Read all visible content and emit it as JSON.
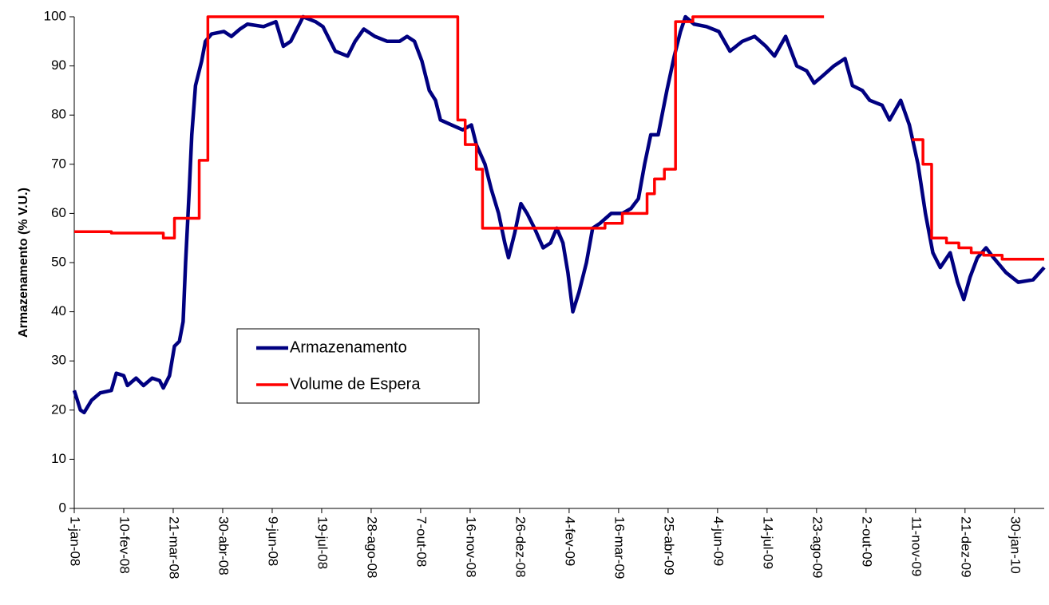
{
  "chart_data": {
    "type": "line",
    "ylabel": "Armazenamento (% V.U.)",
    "ylim": [
      0,
      100
    ],
    "yticks": [
      0,
      10,
      20,
      30,
      40,
      50,
      60,
      70,
      80,
      90,
      100
    ],
    "xlim": [
      "2008-01-01",
      "2010-02-23"
    ],
    "xticks": [
      {
        "value": "2008-01-01",
        "label": "1-jan-08"
      },
      {
        "value": "2008-02-10",
        "label": "10-fev-08"
      },
      {
        "value": "2008-03-21",
        "label": "21-mar-08"
      },
      {
        "value": "2008-04-30",
        "label": "30-abr-08"
      },
      {
        "value": "2008-06-09",
        "label": "9-jun-08"
      },
      {
        "value": "2008-07-19",
        "label": "19-jul-08"
      },
      {
        "value": "2008-08-28",
        "label": "28-ago-08"
      },
      {
        "value": "2008-10-07",
        "label": "7-out-08"
      },
      {
        "value": "2008-11-16",
        "label": "16-nov-08"
      },
      {
        "value": "2008-12-26",
        "label": "26-dez-08"
      },
      {
        "value": "2009-02-04",
        "label": "4-fev-09"
      },
      {
        "value": "2009-03-16",
        "label": "16-mar-09"
      },
      {
        "value": "2009-04-25",
        "label": "25-abr-09"
      },
      {
        "value": "2009-06-04",
        "label": "4-jun-09"
      },
      {
        "value": "2009-07-14",
        "label": "14-jul-09"
      },
      {
        "value": "2009-08-23",
        "label": "23-ago-09"
      },
      {
        "value": "2009-10-02",
        "label": "2-out-09"
      },
      {
        "value": "2009-11-11",
        "label": "11-nov-09"
      },
      {
        "value": "2009-12-21",
        "label": "21-dez-09"
      },
      {
        "value": "2010-01-30",
        "label": "30-jan-10"
      }
    ],
    "grid": false,
    "legend": "center-left",
    "series": [
      {
        "name": "Armazenamento",
        "color": "#000080",
        "x": [
          "2008-01-01",
          "2008-01-06",
          "2008-01-09",
          "2008-01-15",
          "2008-01-22",
          "2008-01-31",
          "2008-02-04",
          "2008-02-10",
          "2008-02-13",
          "2008-02-20",
          "2008-02-26",
          "2008-03-04",
          "2008-03-10",
          "2008-03-13",
          "2008-03-18",
          "2008-03-22",
          "2008-03-26",
          "2008-03-29",
          "2008-03-31",
          "2008-04-03",
          "2008-04-05",
          "2008-04-08",
          "2008-04-13",
          "2008-04-16",
          "2008-04-21",
          "2008-05-01",
          "2008-05-07",
          "2008-05-14",
          "2008-05-20",
          "2008-06-02",
          "2008-06-12",
          "2008-06-18",
          "2008-06-24",
          "2008-07-04",
          "2008-07-14",
          "2008-07-20",
          "2008-07-30",
          "2008-08-09",
          "2008-08-15",
          "2008-08-22",
          "2008-08-31",
          "2008-09-10",
          "2008-09-20",
          "2008-09-26",
          "2008-10-02",
          "2008-10-08",
          "2008-10-14",
          "2008-10-19",
          "2008-10-23",
          "2008-11-01",
          "2008-11-10",
          "2008-11-17",
          "2008-11-21",
          "2008-11-28",
          "2008-12-03",
          "2008-12-09",
          "2008-12-14",
          "2008-12-17",
          "2008-12-22",
          "2008-12-27",
          "2009-01-01",
          "2009-01-07",
          "2009-01-14",
          "2009-01-20",
          "2009-01-25",
          "2009-01-30",
          "2009-02-03",
          "2009-02-07",
          "2009-02-12",
          "2009-02-18",
          "2009-02-23",
          "2009-03-01",
          "2009-03-10",
          "2009-03-19",
          "2009-03-26",
          "2009-04-01",
          "2009-04-06",
          "2009-04-11",
          "2009-04-17",
          "2009-04-24",
          "2009-04-30",
          "2009-05-05",
          "2009-05-09",
          "2009-05-16",
          "2009-05-26",
          "2009-06-05",
          "2009-06-14",
          "2009-06-24",
          "2009-07-04",
          "2009-07-13",
          "2009-07-20",
          "2009-07-29",
          "2009-08-07",
          "2009-08-15",
          "2009-08-21",
          "2009-08-28",
          "2009-09-06",
          "2009-09-15",
          "2009-09-21",
          "2009-09-29",
          "2009-10-05",
          "2009-10-15",
          "2009-10-21",
          "2009-10-30",
          "2009-11-06",
          "2009-11-13",
          "2009-11-19",
          "2009-11-25",
          "2009-12-01",
          "2009-12-09",
          "2009-12-15",
          "2009-12-20",
          "2009-12-25",
          "2009-12-31",
          "2010-01-07",
          "2010-01-13",
          "2010-01-23",
          "2010-02-02",
          "2010-02-14",
          "2010-02-23"
        ],
        "values": [
          24,
          20,
          19.5,
          22,
          23.5,
          24,
          27.5,
          27,
          25,
          26.5,
          25,
          26.5,
          26,
          24.5,
          27,
          33,
          34,
          38,
          50,
          65,
          76,
          86,
          91,
          95,
          96.5,
          97,
          96,
          97.5,
          98.5,
          98,
          99,
          94,
          95,
          100,
          99,
          98,
          93,
          92,
          95,
          97.5,
          96,
          95,
          95,
          96,
          95,
          91,
          85,
          83,
          79,
          78,
          77,
          78,
          74,
          70,
          65,
          60,
          54,
          51,
          56,
          62,
          60,
          57,
          53,
          54,
          57,
          54,
          48,
          40,
          44,
          50,
          57,
          58,
          60,
          60,
          61,
          63,
          70,
          76,
          76,
          85,
          92,
          97,
          100,
          98.5,
          98,
          97,
          93,
          95,
          96,
          94,
          92,
          96,
          90,
          89,
          86.5,
          88,
          90,
          91.5,
          86,
          85,
          83,
          82,
          79,
          83,
          78,
          70,
          60,
          52,
          49,
          52,
          46,
          42.5,
          47,
          51,
          53,
          51,
          48,
          46,
          46.5,
          49
        ]
      },
      {
        "name": "Volume de Espera",
        "color": "#ff0000",
        "x": [
          "2008-01-01",
          "2008-01-31",
          "2008-01-31",
          "2008-03-13",
          "2008-03-13",
          "2008-03-22",
          "2008-03-22",
          "2008-04-11",
          "2008-04-11",
          "2008-04-18",
          "2008-04-18",
          "2008-11-06",
          "2008-11-06",
          "2008-11-12",
          "2008-11-12",
          "2008-11-21",
          "2008-11-21",
          "2008-11-26",
          "2008-11-26",
          "2009-03-05",
          "2009-03-05",
          "2009-03-19",
          "2009-03-19",
          "2009-04-08",
          "2009-04-08",
          "2009-04-14",
          "2009-04-14",
          "2009-04-22",
          "2009-04-22",
          "2009-05-01",
          "2009-05-01",
          "2009-05-15",
          "2009-05-15",
          "2009-08-29",
          null,
          "2009-11-08",
          "2009-11-17",
          "2009-11-17",
          "2009-11-24",
          "2009-11-24",
          "2009-12-06",
          "2009-12-06",
          "2009-12-16",
          "2009-12-16",
          "2009-12-26",
          "2009-12-26",
          "2010-01-05",
          "2010-01-05",
          "2010-01-20",
          "2010-01-20",
          "2010-02-23"
        ],
        "values": [
          56.3,
          56.3,
          56,
          56,
          55,
          55,
          59,
          59,
          70.8,
          70.8,
          100,
          100,
          79,
          79,
          74,
          74,
          69,
          69,
          57,
          57,
          58,
          58,
          60,
          60,
          64,
          64,
          67,
          67,
          69,
          69,
          99,
          99,
          100,
          100,
          null,
          75,
          75,
          70,
          70,
          55,
          55,
          54,
          54,
          53,
          53,
          52,
          52,
          51.5,
          51.5,
          50.7,
          50.7
        ]
      }
    ]
  }
}
